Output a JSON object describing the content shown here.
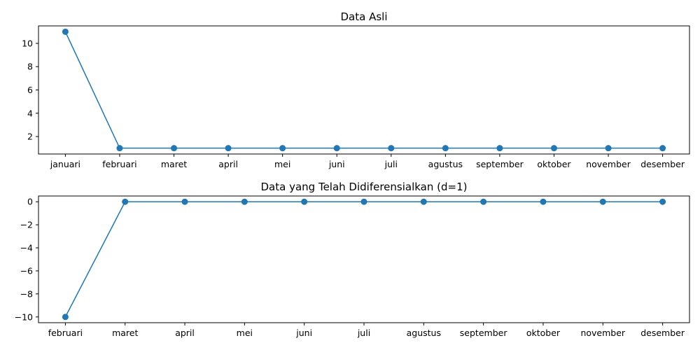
{
  "chart_data": [
    {
      "type": "line",
      "title": "Data Asli",
      "xlabel": "",
      "ylabel": "",
      "categories": [
        "januari",
        "februari",
        "maret",
        "april",
        "mei",
        "juni",
        "juli",
        "agustus",
        "september",
        "oktober",
        "november",
        "desember"
      ],
      "series": [
        {
          "values": [
            11,
            1,
            1,
            1,
            1,
            1,
            1,
            1,
            1,
            1,
            1,
            1
          ],
          "color": "#1f77b4",
          "marker": "circle"
        }
      ],
      "ylim": [
        0.5,
        11.5
      ],
      "yticks": [
        2,
        4,
        6,
        8,
        10
      ],
      "ytick_labels": [
        "2",
        "4",
        "6",
        "8",
        "10"
      ],
      "grid": false
    },
    {
      "type": "line",
      "title": "Data yang Telah Didiferensialkan (d=1)",
      "xlabel": "",
      "ylabel": "",
      "categories": [
        "februari",
        "maret",
        "april",
        "mei",
        "juni",
        "juli",
        "agustus",
        "september",
        "oktober",
        "november",
        "desember"
      ],
      "series": [
        {
          "values": [
            -10,
            0,
            0,
            0,
            0,
            0,
            0,
            0,
            0,
            0,
            0
          ],
          "color": "#1f77b4",
          "marker": "circle"
        }
      ],
      "ylim": [
        -10.5,
        0.5
      ],
      "yticks": [
        -10,
        -8,
        -6,
        -4,
        -2,
        0
      ],
      "ytick_labels": [
        "−10",
        "−8",
        "−6",
        "−4",
        "−2",
        "0"
      ],
      "grid": false
    }
  ]
}
